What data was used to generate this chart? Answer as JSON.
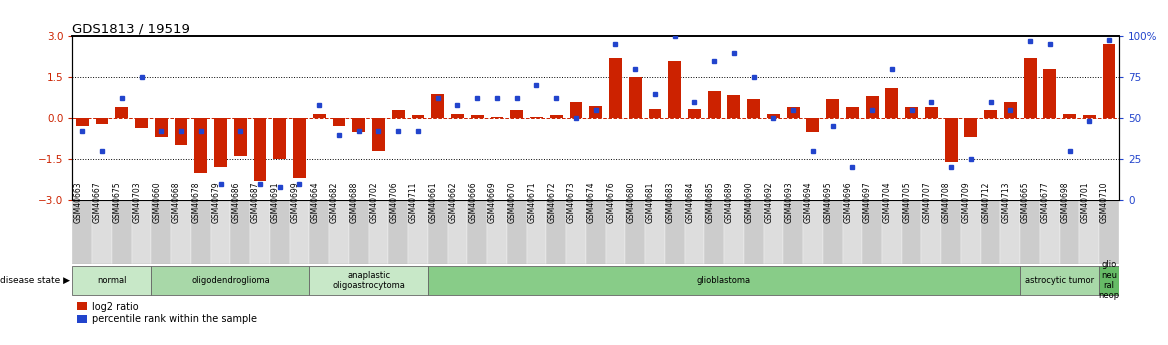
{
  "title": "GDS1813 / 19519",
  "samples": [
    "GSM40663",
    "GSM40667",
    "GSM40675",
    "GSM40703",
    "GSM40660",
    "GSM40668",
    "GSM40678",
    "GSM40679",
    "GSM40686",
    "GSM40687",
    "GSM40691",
    "GSM40699",
    "GSM40664",
    "GSM40682",
    "GSM40688",
    "GSM40702",
    "GSM40706",
    "GSM40711",
    "GSM40661",
    "GSM40662",
    "GSM40666",
    "GSM40669",
    "GSM40670",
    "GSM40671",
    "GSM40672",
    "GSM40673",
    "GSM40674",
    "GSM40676",
    "GSM40680",
    "GSM40681",
    "GSM40683",
    "GSM40684",
    "GSM40685",
    "GSM40689",
    "GSM40690",
    "GSM40692",
    "GSM40693",
    "GSM40694",
    "GSM40695",
    "GSM40696",
    "GSM40697",
    "GSM40704",
    "GSM40705",
    "GSM40707",
    "GSM40708",
    "GSM40709",
    "GSM40712",
    "GSM40713",
    "GSM40665",
    "GSM40677",
    "GSM40698",
    "GSM40701",
    "GSM40710"
  ],
  "log2_ratio": [
    -0.3,
    -0.2,
    0.4,
    -0.35,
    -0.7,
    -1.0,
    -2.0,
    -1.8,
    -1.4,
    -2.3,
    -1.5,
    -2.2,
    0.15,
    -0.3,
    -0.5,
    -1.2,
    0.3,
    0.1,
    0.9,
    0.15,
    0.1,
    0.05,
    0.3,
    0.05,
    0.1,
    0.6,
    0.45,
    2.2,
    1.5,
    0.35,
    2.1,
    0.35,
    1.0,
    0.85,
    0.7,
    0.15,
    0.4,
    -0.5,
    0.7,
    0.4,
    0.8,
    1.1,
    0.4,
    0.4,
    -1.6,
    -0.7,
    0.3,
    0.6,
    2.2,
    1.8,
    0.15,
    0.1,
    2.7
  ],
  "percentile": [
    42,
    30,
    62,
    75,
    42,
    42,
    42,
    10,
    42,
    10,
    8,
    10,
    58,
    40,
    42,
    42,
    42,
    42,
    62,
    58,
    62,
    62,
    62,
    70,
    62,
    50,
    55,
    95,
    80,
    65,
    100,
    60,
    85,
    90,
    75,
    50,
    55,
    30,
    45,
    20,
    55,
    80,
    55,
    60,
    20,
    25,
    60,
    55,
    97,
    95,
    30,
    48,
    98
  ],
  "disease_groups": [
    {
      "label": "normal",
      "start": 0,
      "end": 3,
      "color": "#c8e8c8"
    },
    {
      "label": "oligodendroglioma",
      "start": 4,
      "end": 11,
      "color": "#a8d8a8"
    },
    {
      "label": "anaplastic\noligoastrocytoma",
      "start": 12,
      "end": 17,
      "color": "#c8e8c8"
    },
    {
      "label": "glioblastoma",
      "start": 18,
      "end": 47,
      "color": "#88cc88"
    },
    {
      "label": "astrocytic tumor",
      "start": 48,
      "end": 51,
      "color": "#a8d8a8"
    },
    {
      "label": "glio\nneu\nral\nneop",
      "start": 52,
      "end": 52,
      "color": "#66bb66"
    }
  ],
  "bar_color": "#cc2200",
  "dot_color": "#2244cc",
  "left_ylim": [
    -3,
    3
  ],
  "right_ylim": [
    0,
    100
  ],
  "left_yticks": [
    -3,
    -1.5,
    0,
    1.5,
    3
  ],
  "right_yticks": [
    0,
    25,
    50,
    75,
    100
  ],
  "bg_color": "#ffffff",
  "label_strip_colors": [
    "#cccccc",
    "#dddddd"
  ]
}
